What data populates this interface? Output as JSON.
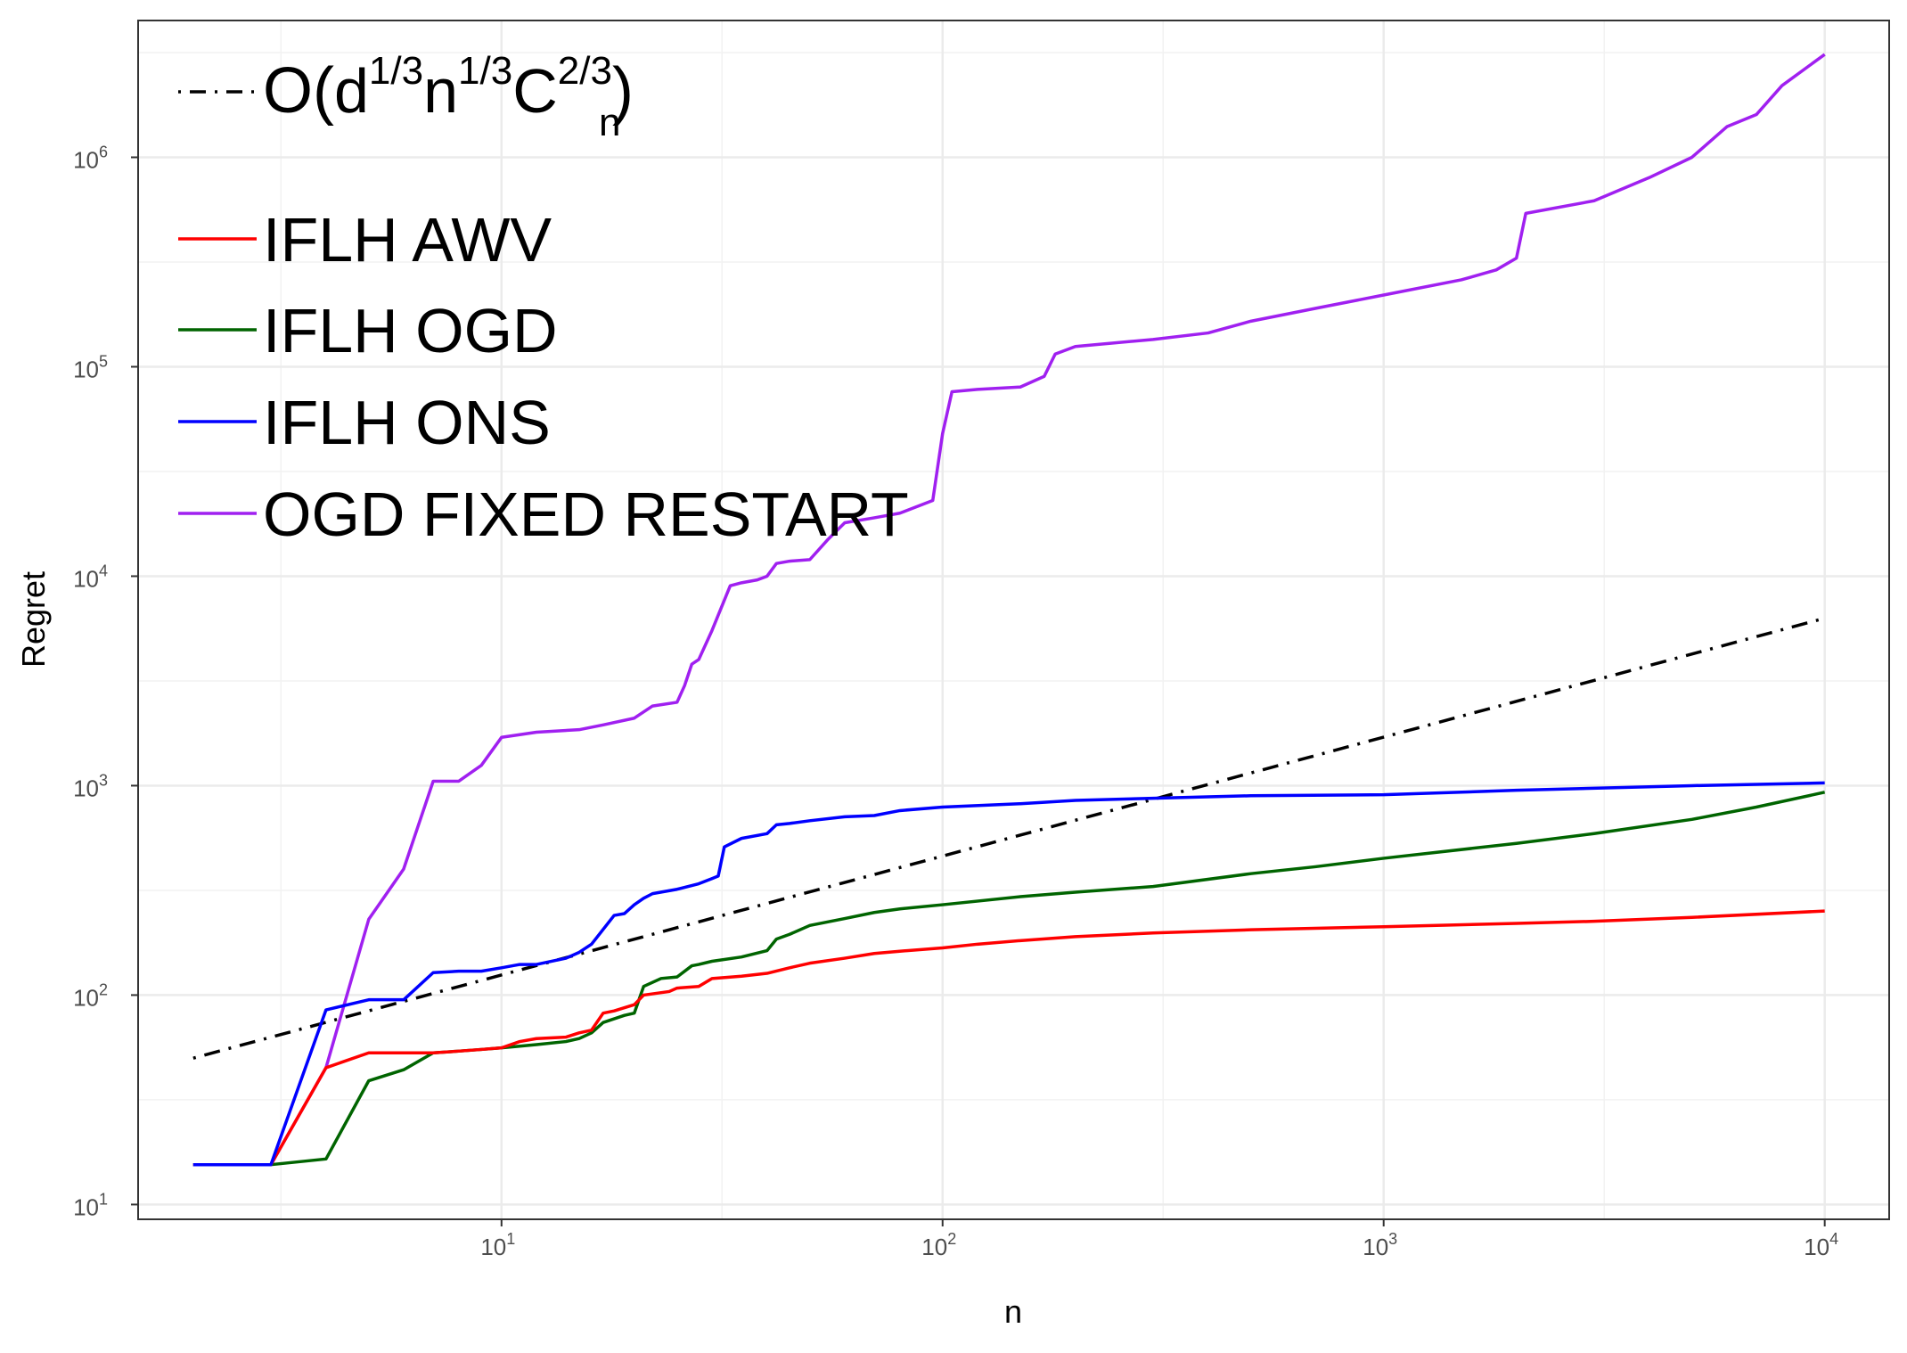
{
  "chart_data": {
    "type": "line",
    "xlabel": "n",
    "ylabel": "Regret",
    "x_scale": "log10",
    "y_scale": "log10",
    "xlim": [
      1.5,
      14000
    ],
    "ylim": [
      8.5,
      4500000
    ],
    "x_ticks": [
      {
        "value": 10,
        "base": "10",
        "exp": "1"
      },
      {
        "value": 100,
        "base": "10",
        "exp": "2"
      },
      {
        "value": 1000,
        "base": "10",
        "exp": "3"
      },
      {
        "value": 10000,
        "base": "10",
        "exp": "4"
      }
    ],
    "y_ticks": [
      {
        "value": 10,
        "base": "10",
        "exp": "1"
      },
      {
        "value": 100,
        "base": "10",
        "exp": "2"
      },
      {
        "value": 1000,
        "base": "10",
        "exp": "3"
      },
      {
        "value": 10000,
        "base": "10",
        "exp": "4"
      },
      {
        "value": 100000,
        "base": "10",
        "exp": "5"
      },
      {
        "value": 1000000,
        "base": "10",
        "exp": "6"
      }
    ],
    "grid": true,
    "legend_position": "top-left",
    "reference_line": {
      "legend_parts": {
        "open": "O(",
        "d": "d",
        "d_exp": "1/3",
        "n": "n",
        "n_exp": "1/3",
        "C": "C",
        "C_sup": "2/3",
        "C_sub": "n",
        "close": ")"
      },
      "color": "#000000",
      "style": "dash-dot",
      "x": [
        2,
        10000
      ],
      "y": [
        50,
        6300
      ]
    },
    "series": [
      {
        "name": "IFLH AWV",
        "color": "#ff0000",
        "x": [
          2,
          3,
          4,
          5,
          6,
          7,
          8,
          9,
          10,
          11,
          12,
          14,
          15,
          16,
          17,
          18,
          20,
          21,
          24,
          25,
          28,
          30,
          35,
          40,
          45,
          50,
          60,
          70,
          80,
          100,
          120,
          150,
          200,
          300,
          500,
          1000,
          2000,
          3000,
          5000,
          10000
        ],
        "y": [
          15.5,
          15.5,
          45,
          53,
          53,
          53,
          54,
          55,
          56,
          60,
          62,
          63,
          66,
          68,
          82,
          84,
          90,
          100,
          104,
          108,
          110,
          120,
          123,
          127,
          135,
          142,
          150,
          158,
          162,
          168,
          175,
          182,
          190,
          198,
          205,
          212,
          220,
          225,
          235,
          252
        ]
      },
      {
        "name": "IFLH OGD",
        "color": "#006400",
        "x": [
          2,
          3,
          4,
          5,
          6,
          7,
          8,
          9,
          10,
          11,
          12,
          14,
          15,
          16,
          17,
          19,
          20,
          21,
          23,
          25,
          27,
          28,
          30,
          35,
          40,
          42,
          45,
          50,
          60,
          70,
          80,
          100,
          150,
          200,
          300,
          500,
          700,
          1000,
          2000,
          3000,
          5000,
          7000,
          10000
        ],
        "y": [
          15.5,
          15.5,
          16.5,
          39,
          44,
          53,
          54,
          55,
          56,
          57,
          58,
          60,
          62,
          66,
          74,
          80,
          82,
          110,
          120,
          122,
          138,
          140,
          145,
          152,
          163,
          185,
          195,
          215,
          232,
          248,
          258,
          270,
          295,
          310,
          330,
          380,
          410,
          450,
          530,
          590,
          690,
          790,
          930
        ]
      },
      {
        "name": "IFLH ONS",
        "color": "#0000ff",
        "x": [
          2,
          3,
          4,
          5,
          6,
          7,
          8,
          9,
          10,
          11,
          12,
          14,
          15,
          16,
          18,
          19,
          20,
          21,
          22,
          25,
          28,
          30,
          31,
          32,
          35,
          40,
          42,
          45,
          50,
          60,
          70,
          80,
          100,
          150,
          200,
          300,
          500,
          1000,
          2000,
          5000,
          10000
        ],
        "y": [
          15.5,
          15.5,
          85,
          95,
          95,
          128,
          130,
          130,
          135,
          140,
          140,
          150,
          160,
          175,
          240,
          245,
          270,
          290,
          305,
          320,
          340,
          360,
          370,
          510,
          560,
          590,
          650,
          660,
          680,
          710,
          720,
          760,
          790,
          820,
          850,
          870,
          895,
          905,
          950,
          1000,
          1030
        ]
      },
      {
        "name": "OGD FIXED RESTART",
        "color": "#a020f0",
        "x": [
          2,
          3,
          4,
          5,
          6,
          7,
          8,
          9,
          10,
          12,
          15,
          17,
          20,
          22,
          25,
          26,
          27,
          28,
          30,
          33,
          35,
          38,
          40,
          42,
          45,
          50,
          55,
          60,
          70,
          80,
          90,
          95,
          100,
          105,
          120,
          150,
          170,
          180,
          200,
          300,
          400,
          500,
          700,
          1000,
          1500,
          1800,
          2000,
          2100,
          3000,
          4000,
          5000,
          6000,
          7000,
          8000,
          10000
        ],
        "y": [
          15.5,
          15.5,
          45,
          230,
          400,
          1050,
          1050,
          1250,
          1700,
          1800,
          1850,
          1950,
          2100,
          2400,
          2500,
          3000,
          3800,
          4000,
          5500,
          9000,
          9300,
          9600,
          10000,
          11500,
          11800,
          12000,
          15000,
          18000,
          19000,
          20000,
          22000,
          23000,
          48000,
          76000,
          78000,
          80000,
          90000,
          115000,
          125000,
          135000,
          145000,
          165000,
          190000,
          220000,
          260000,
          290000,
          330000,
          540000,
          620000,
          800000,
          1000000,
          1400000,
          1600000,
          2200000,
          3100000
        ]
      }
    ]
  }
}
